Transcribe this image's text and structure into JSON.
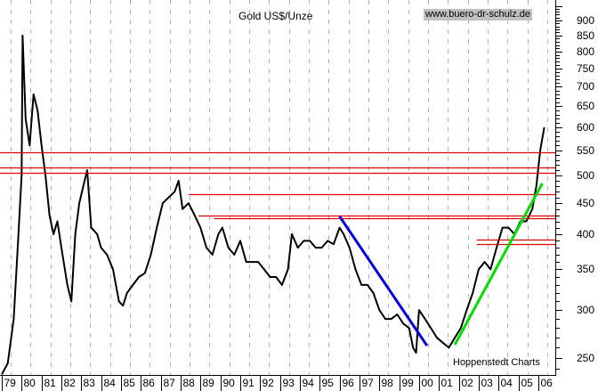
{
  "header": {
    "title": "Gold US$/Unze",
    "url_badge": "www.buero-dr-schulz.de",
    "credit": "Hoppenstedt Charts"
  },
  "colors": {
    "price": "#000000",
    "resistance": "#e00000",
    "downtrend": "#0000e0",
    "uptrend": "#00e000",
    "grid": "#b4b4b4",
    "url_bg": "#c0c0c0"
  },
  "chart_data": {
    "type": "line",
    "title": "Gold US$/Unze",
    "xlabel": "",
    "ylabel": "US$/Unze",
    "y_scale": "log",
    "ylim": [
      235,
      950
    ],
    "x_range": [
      "1979",
      "2006"
    ],
    "x_tick_labels": [
      "79",
      "80",
      "81",
      "82",
      "83",
      "84",
      "85",
      "86",
      "87",
      "88",
      "89",
      "90",
      "91",
      "92",
      "93",
      "94",
      "95",
      "96",
      "97",
      "98",
      "99",
      "00",
      "01",
      "02",
      "03",
      "04",
      "05",
      "06"
    ],
    "y_tick_labels": [
      "900",
      "850",
      "800",
      "750",
      "700",
      "650",
      "600",
      "550",
      "500",
      "450",
      "400",
      "350",
      "300",
      "250"
    ],
    "grid": {
      "vertical_dashed": true,
      "horizontal": false
    },
    "series": [
      {
        "name": "Gold US$/Unze",
        "x": [
          1979.0,
          1979.3,
          1979.6,
          1979.8,
          1980.0,
          1980.05,
          1980.2,
          1980.4,
          1980.6,
          1980.8,
          1981.0,
          1981.2,
          1981.4,
          1981.6,
          1981.8,
          1982.0,
          1982.3,
          1982.5,
          1982.7,
          1982.9,
          1983.1,
          1983.3,
          1983.5,
          1983.8,
          1984.0,
          1984.3,
          1984.6,
          1984.9,
          1985.1,
          1985.3,
          1985.6,
          1985.9,
          1986.2,
          1986.5,
          1986.8,
          1987.1,
          1987.4,
          1987.7,
          1987.9,
          1988.1,
          1988.4,
          1988.7,
          1989.0,
          1989.3,
          1989.6,
          1989.9,
          1990.1,
          1990.4,
          1990.7,
          1991.0,
          1991.3,
          1991.6,
          1991.9,
          1992.2,
          1992.5,
          1992.8,
          1993.1,
          1993.4,
          1993.6,
          1993.9,
          1994.2,
          1994.5,
          1994.8,
          1995.1,
          1995.4,
          1995.7,
          1996.0,
          1996.2,
          1996.5,
          1996.8,
          1997.1,
          1997.4,
          1997.7,
          1998.0,
          1998.3,
          1998.6,
          1998.9,
          1999.2,
          1999.5,
          1999.7,
          1999.85,
          2000.0,
          2000.3,
          2000.6,
          2000.9,
          2001.2,
          2001.5,
          2001.8,
          2002.1,
          2002.4,
          2002.7,
          2003.0,
          2003.3,
          2003.6,
          2003.9,
          2004.2,
          2004.5,
          2004.8,
          2005.1,
          2005.4,
          2005.7,
          2005.9,
          2006.1,
          2006.3
        ],
        "values": [
          235,
          245,
          290,
          380,
          500,
          850,
          620,
          560,
          680,
          640,
          560,
          500,
          430,
          400,
          420,
          380,
          330,
          310,
          400,
          450,
          480,
          510,
          410,
          400,
          380,
          370,
          350,
          310,
          305,
          320,
          330,
          340,
          345,
          370,
          410,
          450,
          460,
          470,
          490,
          440,
          450,
          430,
          410,
          380,
          370,
          400,
          410,
          380,
          370,
          390,
          360,
          360,
          360,
          350,
          340,
          340,
          330,
          350,
          400,
          380,
          390,
          390,
          380,
          380,
          390,
          385,
          410,
          400,
          380,
          350,
          330,
          330,
          320,
          300,
          290,
          290,
          295,
          285,
          280,
          260,
          255,
          300,
          290,
          280,
          270,
          265,
          260,
          270,
          280,
          300,
          320,
          350,
          360,
          350,
          380,
          410,
          410,
          400,
          420,
          420,
          440,
          480,
          550,
          600
        ]
      }
    ],
    "annotations": [
      {
        "type": "hline",
        "color": "red",
        "y": 545,
        "x_from": "1979",
        "x_to": "2006"
      },
      {
        "type": "hline",
        "color": "red",
        "y": 515,
        "x_from": "1979",
        "x_to": "2006"
      },
      {
        "type": "hline",
        "color": "red",
        "y": 505,
        "x_from": "1979",
        "x_to": "2006"
      },
      {
        "type": "hline",
        "color": "red",
        "y": 465,
        "x_from": "1988.4",
        "x_to": "2006"
      },
      {
        "type": "hline",
        "color": "red",
        "y": 430,
        "x_from": "1988.9",
        "x_to": "2006"
      },
      {
        "type": "hline",
        "color": "red",
        "y": 425,
        "x_from": "1989.7",
        "x_to": "2006"
      },
      {
        "type": "hline",
        "color": "red",
        "y": 392,
        "x_from": "2002.9",
        "x_to": "2006"
      },
      {
        "type": "hline",
        "color": "red",
        "y": 385,
        "x_from": "2002.9",
        "x_to": "2006"
      },
      {
        "type": "trendline",
        "color": "blue",
        "from": {
          "x": "1996.0",
          "y": 428
        },
        "to": {
          "x": "2000.4",
          "y": 262
        }
      },
      {
        "type": "trendline",
        "color": "green",
        "from": {
          "x": "2001.8",
          "y": 263
        },
        "to": {
          "x": "2006.2",
          "y": 485
        }
      }
    ]
  }
}
